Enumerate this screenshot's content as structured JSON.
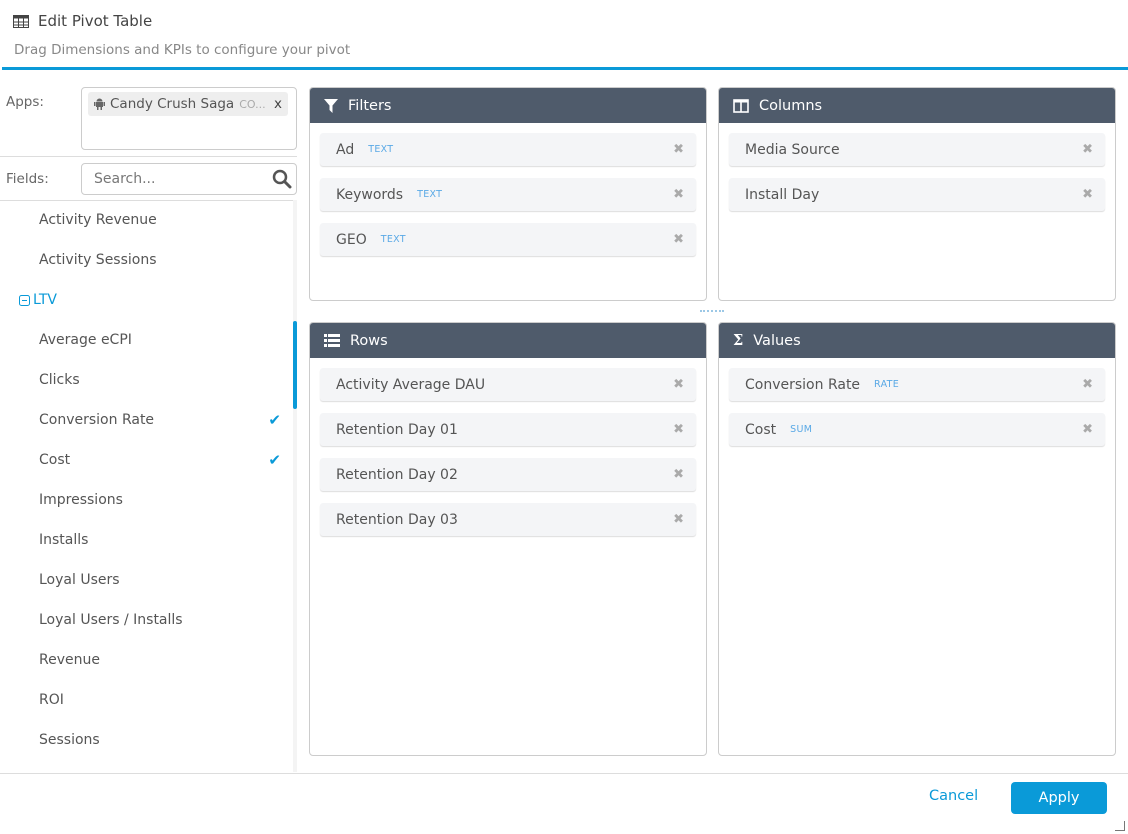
{
  "header": {
    "title": "Edit Pivot Table",
    "subtitle": "Drag Dimensions and KPIs to configure your pivot",
    "icon": "table-icon"
  },
  "colors": {
    "accent": "#0a9ad8",
    "panel_header": "#4f5b6b",
    "type_tag": "#5aa9e6"
  },
  "apps": {
    "label": "Apps:",
    "tag": {
      "name": "Candy Crush Saga",
      "sub": "CO...",
      "remove": "x",
      "icon": "android-icon"
    }
  },
  "fields": {
    "label": "Fields:",
    "search_placeholder": "Search...",
    "items": [
      {
        "label": "Activity Revenue"
      },
      {
        "label": "Activity Sessions"
      },
      {
        "label": "LTV",
        "group": true
      },
      {
        "label": "Average eCPI"
      },
      {
        "label": "Clicks"
      },
      {
        "label": "Conversion Rate",
        "checked": true
      },
      {
        "label": "Cost",
        "checked": true
      },
      {
        "label": "Impressions"
      },
      {
        "label": "Installs"
      },
      {
        "label": "Loyal Users"
      },
      {
        "label": "Loyal Users / Installs"
      },
      {
        "label": "Revenue"
      },
      {
        "label": "ROI"
      },
      {
        "label": "Sessions"
      }
    ]
  },
  "panels": {
    "filters": {
      "title": "Filters",
      "icon": "filter-icon",
      "items": [
        {
          "label": "Ad",
          "type": "TEXT"
        },
        {
          "label": "Keywords",
          "type": "TEXT"
        },
        {
          "label": "GEO",
          "type": "TEXT"
        }
      ]
    },
    "columns": {
      "title": "Columns",
      "icon": "columns-icon",
      "items": [
        {
          "label": "Media Source"
        },
        {
          "label": "Install Day"
        }
      ]
    },
    "rows": {
      "title": "Rows",
      "icon": "list-icon",
      "items": [
        {
          "label": "Activity Average DAU"
        },
        {
          "label": "Retention Day 01"
        },
        {
          "label": "Retention Day 02"
        },
        {
          "label": "Retention Day 03"
        }
      ]
    },
    "values": {
      "title": "Values",
      "icon": "sigma-icon",
      "items": [
        {
          "label": "Conversion Rate",
          "type": "RATE"
        },
        {
          "label": "Cost",
          "type": "SUM"
        }
      ]
    }
  },
  "footer": {
    "cancel": "Cancel",
    "apply": "Apply"
  }
}
